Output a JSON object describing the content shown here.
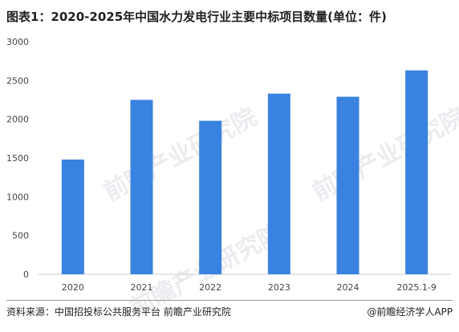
{
  "page": {
    "title": "图表1：2020-2025年中国水力发电行业主要中标项目数量(单位：件)",
    "source": "资料来源：中国招投标公共服务平台 前瞻产业研究院",
    "credit": "@前瞻经济学人APP",
    "watermark": "前瞻产业研究院"
  },
  "chart_data": {
    "type": "bar",
    "title": "图表1：2020-2025年中国水力发电行业主要中标项目数量(单位：件)",
    "categories": [
      "2020",
      "2021",
      "2022",
      "2023",
      "2024",
      "2025.1-9"
    ],
    "values": [
      1480,
      2250,
      1980,
      2330,
      2290,
      2630
    ],
    "ylim": [
      0,
      3000
    ],
    "yticks": [
      0,
      500,
      1000,
      1500,
      2000,
      2500,
      3000
    ],
    "grid": false,
    "bar_color": "#3a82e0"
  }
}
